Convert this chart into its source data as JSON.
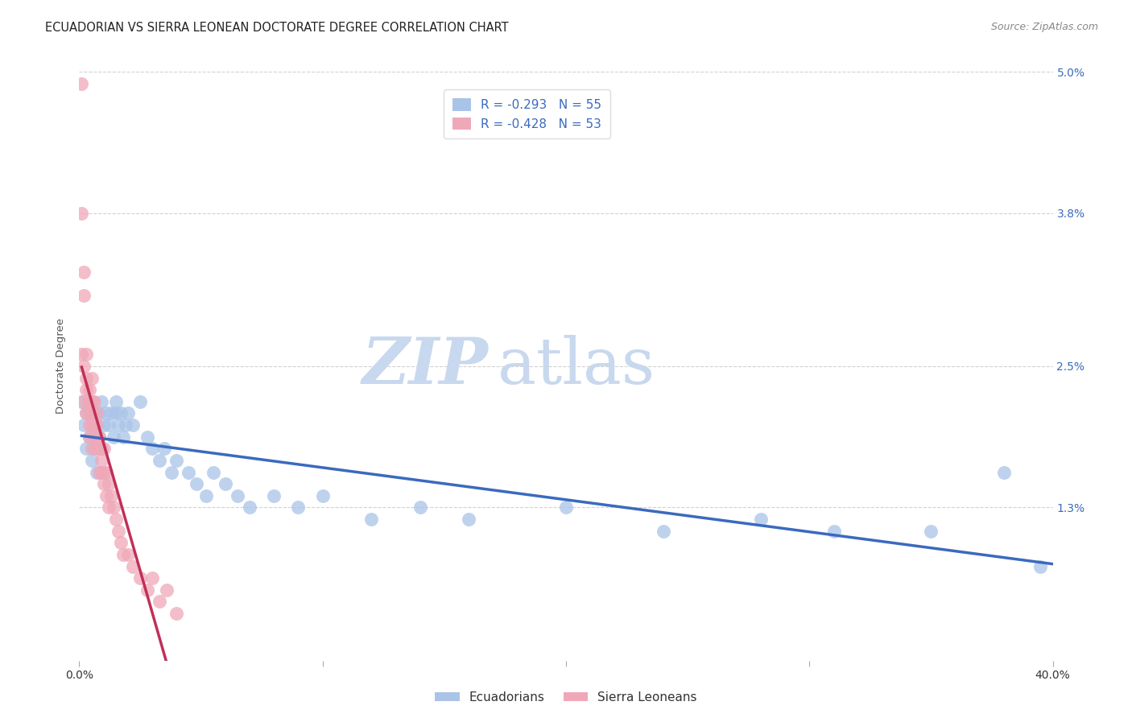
{
  "title": "ECUADORIAN VS SIERRA LEONEAN DOCTORATE DEGREE CORRELATION CHART",
  "source": "Source: ZipAtlas.com",
  "ylabel": "Doctorate Degree",
  "xlim": [
    0.0,
    0.4
  ],
  "ylim": [
    0.0,
    0.05
  ],
  "yticks": [
    0.0,
    0.013,
    0.025,
    0.038,
    0.05
  ],
  "ytick_labels": [
    "",
    "1.3%",
    "2.5%",
    "3.8%",
    "5.0%"
  ],
  "xticks": [
    0.0,
    0.1,
    0.2,
    0.3,
    0.4
  ],
  "xtick_labels": [
    "0.0%",
    "",
    "",
    "",
    "40.0%"
  ],
  "legend_r1": "R = -0.293",
  "legend_n1": "N = 55",
  "legend_r2": "R = -0.428",
  "legend_n2": "N = 53",
  "ecu_color": "#aac4e8",
  "sl_color": "#f0a8b8",
  "ecu_line_color": "#3a6abf",
  "sl_line_color": "#c03058",
  "watermark_zip": "ZIP",
  "watermark_atlas": "atlas",
  "watermark_color_zip": "#c8d8ee",
  "watermark_color_atlas": "#c8d8ee",
  "ecu_label": "Ecuadorians",
  "sl_label": "Sierra Leoneans",
  "ecu_x": [
    0.001,
    0.002,
    0.003,
    0.003,
    0.004,
    0.005,
    0.005,
    0.006,
    0.006,
    0.007,
    0.007,
    0.008,
    0.008,
    0.009,
    0.009,
    0.01,
    0.011,
    0.012,
    0.013,
    0.014,
    0.015,
    0.015,
    0.016,
    0.017,
    0.018,
    0.019,
    0.02,
    0.022,
    0.025,
    0.028,
    0.03,
    0.033,
    0.035,
    0.038,
    0.04,
    0.045,
    0.048,
    0.052,
    0.055,
    0.06,
    0.065,
    0.07,
    0.08,
    0.09,
    0.1,
    0.12,
    0.14,
    0.16,
    0.2,
    0.24,
    0.28,
    0.31,
    0.35,
    0.38,
    0.395
  ],
  "ecu_y": [
    0.022,
    0.02,
    0.021,
    0.018,
    0.019,
    0.022,
    0.017,
    0.021,
    0.018,
    0.02,
    0.016,
    0.021,
    0.019,
    0.022,
    0.018,
    0.02,
    0.021,
    0.02,
    0.021,
    0.019,
    0.022,
    0.021,
    0.02,
    0.021,
    0.019,
    0.02,
    0.021,
    0.02,
    0.022,
    0.019,
    0.018,
    0.017,
    0.018,
    0.016,
    0.017,
    0.016,
    0.015,
    0.014,
    0.016,
    0.015,
    0.014,
    0.013,
    0.014,
    0.013,
    0.014,
    0.012,
    0.013,
    0.012,
    0.013,
    0.011,
    0.012,
    0.011,
    0.011,
    0.016,
    0.008
  ],
  "sl_x": [
    0.001,
    0.001,
    0.001,
    0.002,
    0.002,
    0.002,
    0.002,
    0.003,
    0.003,
    0.003,
    0.003,
    0.004,
    0.004,
    0.004,
    0.004,
    0.004,
    0.005,
    0.005,
    0.005,
    0.005,
    0.005,
    0.006,
    0.006,
    0.006,
    0.007,
    0.007,
    0.007,
    0.008,
    0.008,
    0.008,
    0.009,
    0.009,
    0.01,
    0.01,
    0.01,
    0.011,
    0.011,
    0.012,
    0.012,
    0.013,
    0.014,
    0.015,
    0.016,
    0.017,
    0.018,
    0.02,
    0.022,
    0.025,
    0.028,
    0.03,
    0.033,
    0.036,
    0.04
  ],
  "sl_y": [
    0.049,
    0.038,
    0.026,
    0.033,
    0.031,
    0.025,
    0.022,
    0.026,
    0.024,
    0.023,
    0.021,
    0.023,
    0.022,
    0.021,
    0.02,
    0.019,
    0.024,
    0.022,
    0.021,
    0.02,
    0.018,
    0.022,
    0.02,
    0.019,
    0.021,
    0.02,
    0.018,
    0.019,
    0.018,
    0.016,
    0.017,
    0.016,
    0.018,
    0.016,
    0.015,
    0.016,
    0.014,
    0.015,
    0.013,
    0.014,
    0.013,
    0.012,
    0.011,
    0.01,
    0.009,
    0.009,
    0.008,
    0.007,
    0.006,
    0.007,
    0.005,
    0.006,
    0.004
  ],
  "background_color": "#ffffff",
  "grid_color": "#cccccc",
  "title_fontsize": 10.5,
  "axis_label_fontsize": 9.5,
  "tick_fontsize": 10,
  "legend_fontsize": 11
}
